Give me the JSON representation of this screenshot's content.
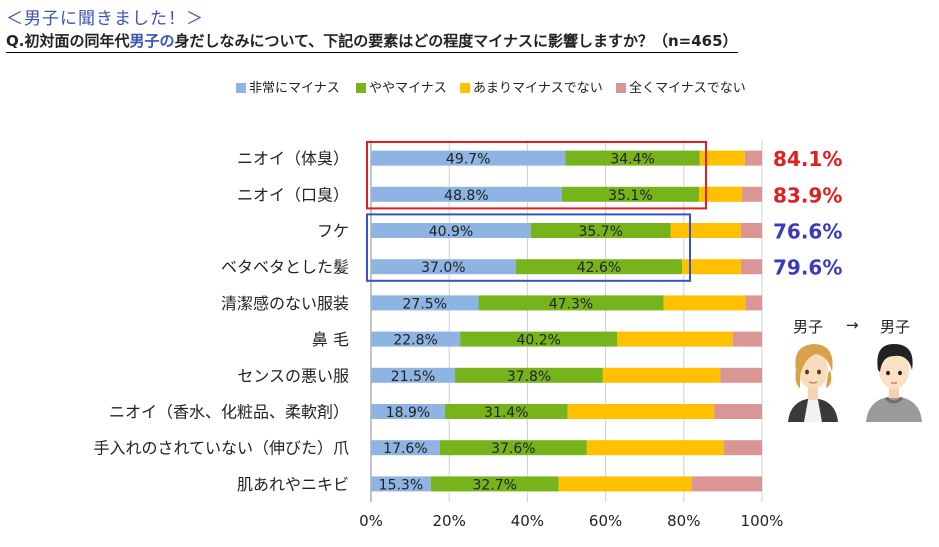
{
  "header": {
    "kicker": "＜男子に聞きました！＞",
    "question_prefix": "Q.初対面の同年代",
    "question_highlight": "男子の",
    "question_suffix": "身だしなみについて、下記の要素はどの程度マイナスに影響しますか？（n=465）"
  },
  "chart_data": {
    "type": "bar",
    "orientation": "horizontal",
    "stacked": true,
    "percent": true,
    "categories": [
      "ニオイ（体臭）",
      "ニオイ（口臭）",
      "フケ",
      "ベタベタとした髪",
      "清潔感のない服装",
      "鼻 毛",
      "センスの悪い服",
      "ニオイ（香水、化粧品、柔軟剤）",
      "手入れのされていない（伸びた）爪",
      "肌あれやニキビ"
    ],
    "series": [
      {
        "name": "非常にマイナス",
        "color": "#8db4e2",
        "values": [
          49.7,
          48.8,
          40.9,
          37.0,
          27.5,
          22.8,
          21.5,
          18.9,
          17.6,
          15.3
        ]
      },
      {
        "name": "ややマイナス",
        "color": "#77b31a",
        "values": [
          34.4,
          35.1,
          35.7,
          42.6,
          47.3,
          40.2,
          37.8,
          31.4,
          37.6,
          32.7
        ]
      },
      {
        "name": "あまりマイナスでない",
        "color": "#ffc000",
        "values": [
          11.5,
          11.0,
          18.0,
          15.0,
          21.0,
          29.5,
          30.0,
          37.5,
          35.0,
          34.0
        ]
      },
      {
        "name": "全くマイナスでない",
        "color": "#da9694",
        "values": [
          4.4,
          5.1,
          5.4,
          5.4,
          4.2,
          7.5,
          10.7,
          12.2,
          9.8,
          18.0
        ]
      }
    ],
    "data_labels": [
      [
        "49.7%",
        "48.8%",
        "40.9%",
        "37.0%",
        "27.5%",
        "22.8%",
        "21.5%",
        "18.9%",
        "17.6%",
        "15.3%"
      ],
      [
        "34.4%",
        "35.1%",
        "35.7%",
        "42.6%",
        "47.3%",
        "40.2%",
        "37.8%",
        "31.4%",
        "37.6%",
        "32.7%"
      ]
    ],
    "xlim": [
      0,
      100
    ],
    "xticks": [
      "0%",
      "20%",
      "40%",
      "60%",
      "80%",
      "100%"
    ],
    "legend_position": "top",
    "grid": true,
    "callouts": [
      {
        "text": "84.1%",
        "color": "#e02020",
        "row": 0
      },
      {
        "text": "83.9%",
        "color": "#e02020",
        "row": 1
      },
      {
        "text": "76.6%",
        "color": "#3a3ac0",
        "row": 2
      },
      {
        "text": "79.6%",
        "color": "#3a3ac0",
        "row": 3
      }
    ],
    "highlight_boxes": [
      {
        "rows": [
          0,
          1
        ],
        "color": "#e02020"
      },
      {
        "rows": [
          2,
          3
        ],
        "color": "#3a52c8"
      }
    ]
  },
  "illustration": {
    "from_label": "男子",
    "arrow": "→",
    "to_label": "男子"
  }
}
